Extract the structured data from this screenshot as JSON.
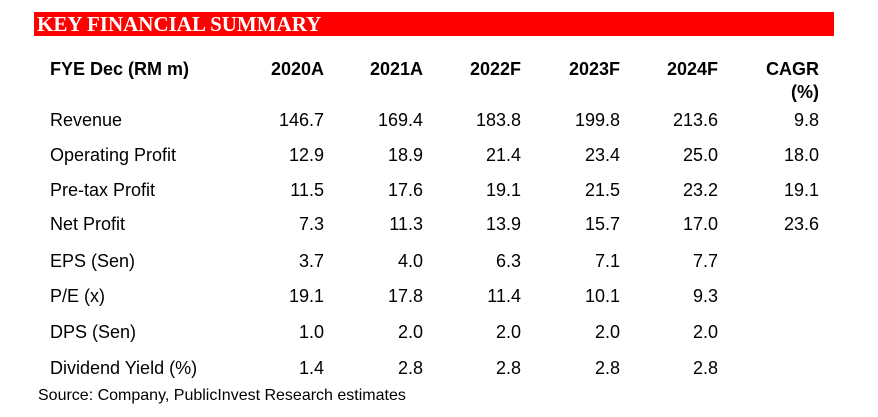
{
  "banner": {
    "title": "KEY FINANCIAL SUMMARY",
    "color": "#ff0000"
  },
  "table": {
    "header": {
      "label": "FYE Dec (RM m)",
      "years": [
        "2020A",
        "2021A",
        "2022F",
        "2023F",
        "2024F"
      ],
      "cagr_line1": "CAGR",
      "cagr_line2": "(%)"
    },
    "rows": [
      {
        "label": "Revenue",
        "values": [
          "146.7",
          "169.4",
          "183.8",
          "199.8",
          "213.6"
        ],
        "cagr": "9.8"
      },
      {
        "label": "Operating Profit",
        "values": [
          "12.9",
          "18.9",
          "21.4",
          "23.4",
          "25.0"
        ],
        "cagr": "18.0"
      },
      {
        "label": "Pre-tax Profit",
        "values": [
          "11.5",
          "17.6",
          "19.1",
          "21.5",
          "23.2"
        ],
        "cagr": "19.1"
      },
      {
        "label": "Net Profit",
        "values": [
          "7.3",
          "11.3",
          "13.9",
          "15.7",
          "17.0"
        ],
        "cagr": "23.6"
      },
      {
        "label": "EPS (Sen)",
        "values": [
          "3.7",
          "4.0",
          "6.3",
          "7.1",
          "7.7"
        ],
        "cagr": ""
      },
      {
        "label": "P/E (x)",
        "values": [
          "19.1",
          "17.8",
          "11.4",
          "10.1",
          "9.3"
        ],
        "cagr": ""
      },
      {
        "label": "DPS (Sen)",
        "values": [
          "1.0",
          "2.0",
          "2.0",
          "2.0",
          "2.0"
        ],
        "cagr": ""
      },
      {
        "label": "Dividend Yield (%)",
        "values": [
          "1.4",
          "2.8",
          "2.8",
          "2.8",
          "2.8"
        ],
        "cagr": ""
      }
    ]
  },
  "source": "Source: Company, PublicInvest Research estimates"
}
